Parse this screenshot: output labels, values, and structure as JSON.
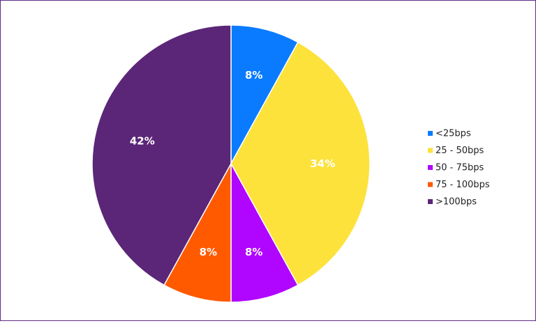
{
  "chart_data": {
    "type": "pie",
    "title": "",
    "categories": [
      "<25bps",
      "25 - 50bps",
      "50 - 75bps",
      "75 - 100bps",
      ">100bps"
    ],
    "values": [
      8,
      34,
      8,
      8,
      42
    ],
    "labels": [
      "8%",
      "34%",
      "8%",
      "8%",
      "42%"
    ],
    "colors": [
      "#0a7bff",
      "#fde23b",
      "#b005ff",
      "#ff5a00",
      "#5b2677"
    ],
    "legend_position": "right",
    "start_angle": "top",
    "direction": "clockwise"
  }
}
